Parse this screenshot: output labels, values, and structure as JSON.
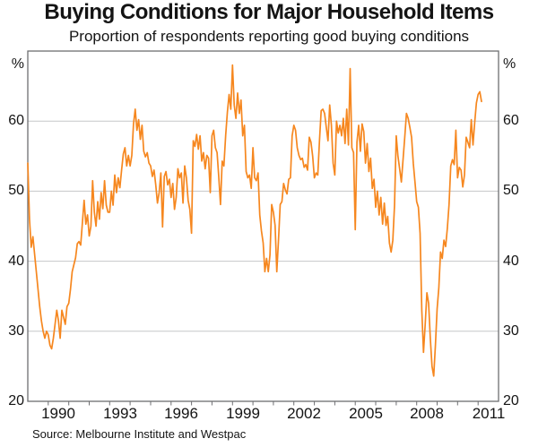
{
  "chart_data": {
    "type": "line",
    "title": "Buying Conditions for Major Household Items",
    "subtitle": "Proportion of respondents reporting good buying conditions",
    "source": "Source: Melbourne Institute and Westpac",
    "unit_label": "%",
    "x_axis": {
      "range": [
        1989.0,
        2012.0
      ],
      "tick_years": [
        1990,
        1991,
        1992,
        1993,
        1994,
        1995,
        1996,
        1997,
        1998,
        1999,
        2000,
        2001,
        2002,
        2003,
        2004,
        2005,
        2006,
        2007,
        2008,
        2009,
        2010,
        2011
      ],
      "label_years": [
        1990,
        1993,
        1996,
        1999,
        2002,
        2005,
        2008,
        2011
      ],
      "grid": false
    },
    "y_axis": {
      "range": [
        20,
        70
      ],
      "gridlines": [
        30,
        40,
        50,
        60
      ],
      "tick_labels": [
        20,
        30,
        40,
        50,
        60
      ],
      "labels_on_both_sides": true,
      "grid": true
    },
    "series": [
      {
        "name": "Proportion of respondents reporting good buying conditions",
        "color": "#F6871F",
        "frequency": "monthly",
        "start_year": 1989.0,
        "step_years": 0.0833333,
        "values": [
          54,
          46,
          42,
          43.5,
          41,
          38.5,
          36,
          33.5,
          31.5,
          30,
          29,
          30,
          29.5,
          28,
          27.5,
          29,
          31,
          33,
          31.5,
          29,
          33,
          32,
          31,
          33.5,
          34,
          36,
          38.5,
          39.5,
          40.5,
          42.5,
          42.8,
          42.3,
          45.5,
          48.7,
          45.3,
          46.6,
          43.6,
          45,
          51.5,
          47,
          45,
          48.5,
          46,
          49.8,
          47.5,
          51.5,
          48,
          47,
          47,
          50,
          48,
          52.3,
          49.8,
          51.9,
          50.5,
          53,
          55.3,
          56.2,
          53.6,
          55.1,
          53.6,
          55.1,
          59.6,
          61.7,
          58.7,
          60.2,
          57.4,
          59.4,
          55.7,
          54.9,
          55.5,
          54,
          53.6,
          52.1,
          53,
          50.9,
          48.3,
          49.8,
          52.6,
          44.9,
          52.1,
          52.8,
          50.9,
          51.7,
          49.1,
          51.1,
          47.4,
          49.1,
          53.2,
          51.9,
          52.6,
          48.3,
          53.6,
          51.9,
          48.7,
          47.4,
          44,
          57.2,
          56.4,
          58.1,
          56,
          57.9,
          54.3,
          55.5,
          53.2,
          55.1,
          54.7,
          49.8,
          57.9,
          58.7,
          56.2,
          55.5,
          52,
          48.1,
          54.3,
          53.6,
          58,
          61.3,
          63.8,
          61.7,
          68,
          62.3,
          60.4,
          64,
          61.1,
          63,
          57.9,
          59.4,
          52.8,
          51.9,
          52.3,
          50.4,
          56.2,
          51.9,
          51.5,
          52.6,
          46.6,
          44.3,
          42.6,
          38.5,
          40.4,
          38.5,
          40.9,
          48.1,
          47,
          45.1,
          38.5,
          43,
          48.1,
          48.5,
          51.1,
          50.2,
          49.6,
          51.7,
          51.9,
          57.9,
          59.4,
          58.7,
          56.2,
          55.1,
          54.5,
          54.7,
          53.4,
          53.8,
          53,
          57.7,
          57,
          55,
          51.9,
          52.6,
          52.3,
          57.2,
          61.5,
          61.7,
          61.1,
          59.1,
          57.2,
          62.3,
          59.4,
          54,
          52.3,
          60,
          58.3,
          59.4,
          57.9,
          60.4,
          56.8,
          61.7,
          56.6,
          67.5,
          56.2,
          55.5,
          44.5,
          57,
          59.4,
          55.7,
          59.6,
          58.5,
          54,
          56.8,
          52.8,
          54.7,
          50.4,
          51.7,
          47.7,
          50,
          46.6,
          49.1,
          45.3,
          48.3,
          45.1,
          46.4,
          42.6,
          41.3,
          43,
          48,
          57.9,
          55,
          53.2,
          51.3,
          54.5,
          57.7,
          61.1,
          60.4,
          59.1,
          57.7,
          54,
          51.3,
          48.5,
          47.7,
          44,
          33,
          27,
          31,
          35.5,
          34,
          29,
          25,
          23.6,
          28,
          33.2,
          36.2,
          41.3,
          40.4,
          43,
          42.1,
          44.7,
          48.1,
          53.6,
          54.5,
          53.8,
          58.7,
          51.9,
          53.4,
          53,
          50.6,
          52.3,
          57.7,
          57,
          56.2,
          60.2,
          56.6,
          59.8,
          62.6,
          63.8,
          64.2,
          62.8
        ]
      }
    ],
    "plot_colors": {
      "line": "#F6871F",
      "grid": "#c6c7c8",
      "axis_frame": "#6d6e71",
      "text": "#141414"
    }
  }
}
